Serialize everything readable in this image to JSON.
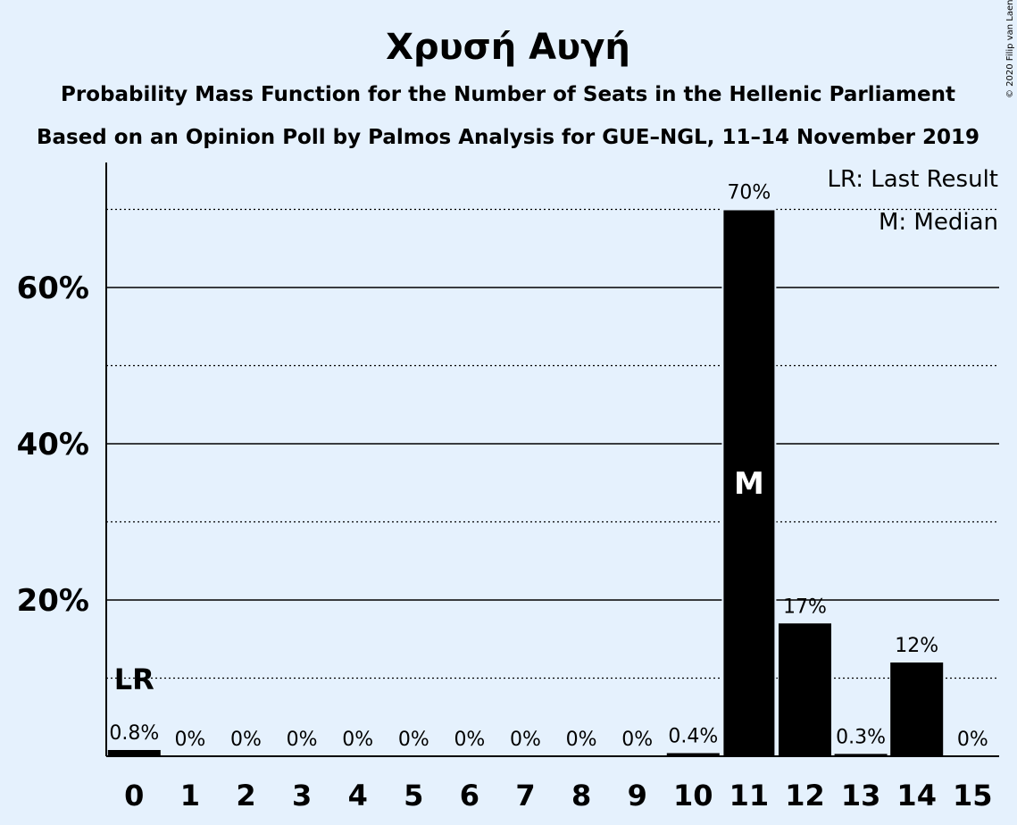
{
  "chart_data": {
    "type": "bar",
    "title": "Χρυσή Αυγή",
    "subtitle": "Probability Mass Function for the Number of Seats in the Hellenic Parliament",
    "subtitle2": "Based on an Opinion Poll by Palmos Analysis for GUE–NGL, 11–14 November 2019",
    "categories": [
      "0",
      "1",
      "2",
      "3",
      "4",
      "5",
      "6",
      "7",
      "8",
      "9",
      "10",
      "11",
      "12",
      "13",
      "14",
      "15"
    ],
    "values": [
      0.8,
      0,
      0,
      0,
      0,
      0,
      0,
      0,
      0,
      0,
      0.4,
      70,
      17,
      0.3,
      12,
      0
    ],
    "data_labels": [
      "0.8%",
      "0%",
      "0%",
      "0%",
      "0%",
      "0%",
      "0%",
      "0%",
      "0%",
      "0%",
      "0.4%",
      "70%",
      "17%",
      "0.3%",
      "12%",
      "0%"
    ],
    "ylim": [
      0,
      76
    ],
    "yticks": [
      20,
      40,
      60
    ],
    "ytick_labels": [
      "20%",
      "40%",
      "60%"
    ],
    "minor_gridlines": [
      10,
      30,
      50,
      70
    ],
    "bar_color": "#000000",
    "background_color": "#e5f1fd",
    "median_category": "11",
    "median_marker": "M",
    "last_result_category": "0",
    "last_result_marker": "LR",
    "legend": [
      "LR: Last Result",
      "M: Median"
    ],
    "legend_position": "top-right",
    "copyright": "© 2020 Filip van Laenen"
  }
}
